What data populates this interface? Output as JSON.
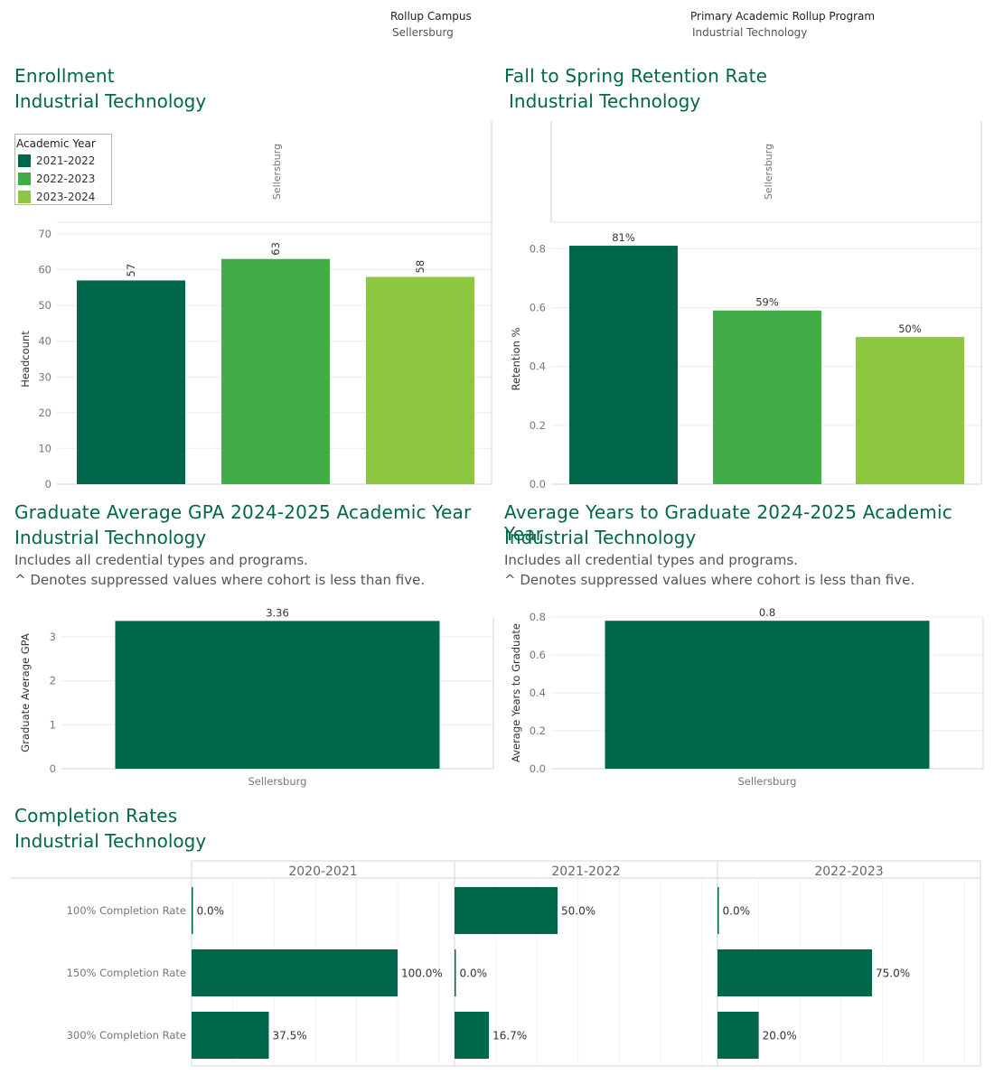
{
  "filters": {
    "campus_label": "Rollup Campus",
    "campus_value": "Sellersburg",
    "program_label": "Primary Academic Rollup Program",
    "program_value": "Industrial Technology"
  },
  "colors": {
    "dark": "#00674A",
    "mid": "#41AD49",
    "light": "#8DC63F",
    "title": "#006747"
  },
  "enrollment": {
    "title": "Enrollment",
    "subtitle": "Industrial Technology",
    "column_header": "Sellersburg",
    "legend_title": "Academic Year",
    "legend_items": [
      "2021-2022",
      "2022-2023",
      "2023-2024"
    ]
  },
  "retention": {
    "title": "Fall to Spring Retention Rate",
    "subtitle": "Industrial Technology",
    "column_header": "Sellersburg"
  },
  "gpa": {
    "title": "Graduate Average GPA 2024-2025 Academic Year",
    "subtitle": "Industrial Technology",
    "note1": "Includes all credential types and programs.",
    "note2": "^ Denotes suppressed values where cohort is less than five."
  },
  "years": {
    "title": "Average Years to Graduate 2024-2025 Academic Year",
    "subtitle": "Industrial Technology",
    "note1": "Includes all credential types and programs.",
    "note2": "^ Denotes suppressed values where cohort is less than five."
  },
  "completion": {
    "title": "Completion Rates",
    "subtitle": "Industrial Technology"
  },
  "chart_data": [
    {
      "id": "enrollment",
      "type": "bar",
      "categories": [
        "2021-2022",
        "2022-2023",
        "2023-2024"
      ],
      "values": [
        57,
        63,
        58
      ],
      "data_labels": [
        "57",
        "63",
        "58"
      ],
      "ylabel": "Headcount",
      "ylim": [
        0,
        70
      ],
      "yticks": [
        0,
        10,
        20,
        30,
        40,
        50,
        60,
        70
      ],
      "ytick_labels": [
        "0",
        "10",
        "20",
        "30",
        "40",
        "50",
        "60",
        "70"
      ],
      "legend_position": "top-left"
    },
    {
      "id": "retention",
      "type": "bar",
      "categories": [
        "2021-2022",
        "2022-2023",
        "2023-2024"
      ],
      "values": [
        0.81,
        0.59,
        0.5
      ],
      "data_labels": [
        "81%",
        "59%",
        "50%"
      ],
      "ylabel": "Retention %",
      "ylim": [
        0,
        0.85
      ],
      "yticks": [
        0,
        0.2,
        0.4,
        0.6,
        0.8
      ],
      "ytick_labels": [
        "0.0",
        "0.2",
        "0.4",
        "0.6",
        "0.8"
      ]
    },
    {
      "id": "gpa",
      "type": "bar",
      "categories": [
        "Sellersburg"
      ],
      "values": [
        3.36
      ],
      "data_labels": [
        "3.36"
      ],
      "ylabel": "Graduate Average GPA",
      "ylim": [
        0,
        3.45
      ],
      "yticks": [
        0,
        1,
        2,
        3
      ],
      "ytick_labels": [
        "0",
        "1",
        "2",
        "3"
      ]
    },
    {
      "id": "years",
      "type": "bar",
      "categories": [
        "Sellersburg"
      ],
      "values": [
        0.78
      ],
      "data_labels": [
        "0.8"
      ],
      "ylabel": "Average Years to Graduate",
      "ylim": [
        0,
        0.8
      ],
      "yticks": [
        0,
        0.2,
        0.4,
        0.6,
        0.8
      ],
      "ytick_labels": [
        "0.0",
        "0.2",
        "0.4",
        "0.6",
        "0.8"
      ]
    },
    {
      "id": "completion",
      "type": "bar",
      "orientation": "horizontal",
      "panels": [
        "2020-2021",
        "2021-2022",
        "2022-2023"
      ],
      "categories": [
        "100% Completion Rate",
        "150% Completion Rate",
        "300% Completion Rate"
      ],
      "values": [
        [
          0,
          1,
          0.375
        ],
        [
          0.5,
          0,
          0.167
        ],
        [
          0,
          0.75,
          0.2
        ]
      ],
      "data_labels": [
        [
          "0.0%",
          "100.0%",
          "37.5%"
        ],
        [
          "50.0%",
          "0.0%",
          "16.7%"
        ],
        [
          "0.0%",
          "75.0%",
          "20.0%"
        ]
      ],
      "xlim": [
        0,
        1.27
      ]
    }
  ]
}
